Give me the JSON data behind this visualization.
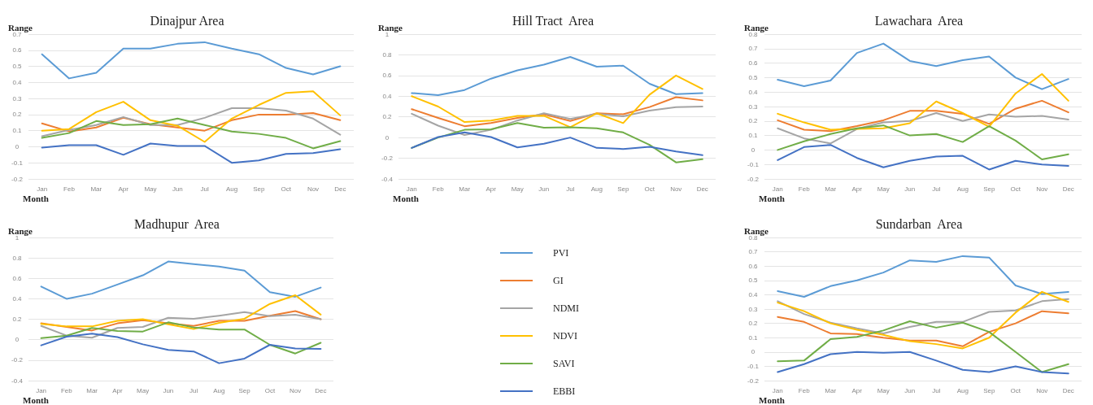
{
  "chart_data": [
    {
      "type": "line",
      "title": "Dinajpur Area",
      "xlabel": "Month",
      "ylabel": "Range",
      "categories": [
        "Jan",
        "Feb",
        "Mar",
        "Apr",
        "May",
        "Jun",
        "Jul",
        "Aug",
        "Sep",
        "Oct",
        "Nov",
        "Dec"
      ],
      "ylim": [
        -0.2,
        0.7
      ],
      "yticks": [
        -0.2,
        -0.1,
        0,
        0.1,
        0.2,
        0.3,
        0.4,
        0.5,
        0.6,
        0.7
      ],
      "grid": "y",
      "legend": false,
      "marker": "none",
      "line_style": "solid",
      "series": [
        {
          "color": "#5b9bd5",
          "values": [
            0.575,
            0.425,
            0.46,
            0.61,
            0.61,
            0.64,
            0.65,
            0.61,
            0.575,
            0.49,
            0.45,
            0.5
          ]
        },
        {
          "color": "#ed7d31",
          "values": [
            0.145,
            0.095,
            0.12,
            0.18,
            0.14,
            0.12,
            0.1,
            0.165,
            0.2,
            0.2,
            0.21,
            0.165
          ]
        },
        {
          "color": "#a5a5a5",
          "values": [
            0.065,
            0.105,
            0.135,
            0.185,
            0.135,
            0.135,
            0.18,
            0.24,
            0.24,
            0.225,
            0.175,
            0.075
          ]
        },
        {
          "color": "#ffc000",
          "values": [
            0.1,
            0.11,
            0.215,
            0.28,
            0.165,
            0.13,
            0.03,
            0.175,
            0.26,
            0.335,
            0.345,
            0.195
          ]
        },
        {
          "color": "#70ad47",
          "values": [
            0.055,
            0.085,
            0.16,
            0.135,
            0.14,
            0.175,
            0.135,
            0.095,
            0.08,
            0.055,
            -0.01,
            0.035
          ]
        },
        {
          "color": "#4472c4",
          "values": [
            -0.005,
            0.01,
            0.01,
            -0.05,
            0.02,
            0.005,
            0.005,
            -0.1,
            -0.085,
            -0.045,
            -0.04,
            -0.015
          ]
        }
      ]
    },
    {
      "type": "line",
      "title": "Hill Tract  Area",
      "xlabel": "Month",
      "ylabel": "Range",
      "categories": [
        "Jan",
        "Feb",
        "Mar",
        "Apr",
        "May",
        "Jun",
        "Jul",
        "Aug",
        "Sep",
        "Oct",
        "Nov",
        "Dec"
      ],
      "ylim": [
        -0.4,
        1
      ],
      "yticks": [
        -0.4,
        -0.2,
        0,
        0.2,
        0.4,
        0.6,
        0.8,
        1
      ],
      "grid": "y",
      "legend": false,
      "marker": "none",
      "line_style": "solid",
      "series": [
        {
          "color": "#5b9bd5",
          "values": [
            0.43,
            0.41,
            0.46,
            0.57,
            0.65,
            0.705,
            0.78,
            0.685,
            0.695,
            0.52,
            0.42,
            0.43
          ]
        },
        {
          "color": "#ed7d31",
          "values": [
            0.275,
            0.19,
            0.11,
            0.14,
            0.19,
            0.225,
            0.16,
            0.235,
            0.225,
            0.295,
            0.39,
            0.36
          ]
        },
        {
          "color": "#a5a5a5",
          "values": [
            0.23,
            0.115,
            0.025,
            0.075,
            0.165,
            0.235,
            0.18,
            0.23,
            0.205,
            0.26,
            0.295,
            0.3
          ]
        },
        {
          "color": "#ffc000",
          "values": [
            0.4,
            0.3,
            0.15,
            0.165,
            0.21,
            0.21,
            0.1,
            0.235,
            0.14,
            0.415,
            0.6,
            0.47
          ]
        },
        {
          "color": "#70ad47",
          "values": [
            -0.1,
            0,
            0.075,
            0.08,
            0.14,
            0.095,
            0.1,
            0.09,
            0.05,
            -0.07,
            -0.24,
            -0.21
          ]
        },
        {
          "color": "#4472c4",
          "values": [
            -0.1,
            0.005,
            0.05,
            0.005,
            -0.095,
            -0.06,
            0,
            -0.1,
            -0.11,
            -0.09,
            -0.135,
            -0.17
          ]
        }
      ]
    },
    {
      "type": "line",
      "title": "Lawachara  Area",
      "xlabel": "Month",
      "ylabel": "Range",
      "categories": [
        "Jan",
        "Feb",
        "Mar",
        "Apr",
        "May",
        "Jun",
        "Jul",
        "Aug",
        "Sep",
        "Oct",
        "Nov",
        "Dec"
      ],
      "ylim": [
        -0.2,
        0.8
      ],
      "yticks": [
        -0.2,
        -0.1,
        0,
        0.1,
        0.2,
        0.3,
        0.4,
        0.5,
        0.6,
        0.7,
        0.8
      ],
      "grid": "y",
      "legend": false,
      "marker": "none",
      "line_style": "solid",
      "series": [
        {
          "color": "#5b9bd5",
          "values": [
            0.485,
            0.44,
            0.48,
            0.67,
            0.735,
            0.615,
            0.58,
            0.62,
            0.645,
            0.5,
            0.42,
            0.49
          ]
        },
        {
          "color": "#ed7d31",
          "values": [
            0.205,
            0.14,
            0.13,
            0.165,
            0.205,
            0.27,
            0.27,
            0.25,
            0.18,
            0.285,
            0.34,
            0.26
          ]
        },
        {
          "color": "#a5a5a5",
          "values": [
            0.15,
            0.08,
            0.045,
            0.145,
            0.19,
            0.2,
            0.255,
            0.2,
            0.245,
            0.23,
            0.235,
            0.21
          ]
        },
        {
          "color": "#ffc000",
          "values": [
            0.25,
            0.19,
            0.14,
            0.145,
            0.15,
            0.185,
            0.335,
            0.255,
            0.16,
            0.39,
            0.525,
            0.34
          ]
        },
        {
          "color": "#70ad47",
          "values": [
            0,
            0.06,
            0.11,
            0.15,
            0.17,
            0.1,
            0.11,
            0.055,
            0.165,
            0.065,
            -0.065,
            -0.03
          ]
        },
        {
          "color": "#4472c4",
          "values": [
            -0.07,
            0.02,
            0.035,
            -0.055,
            -0.12,
            -0.075,
            -0.045,
            -0.04,
            -0.135,
            -0.075,
            -0.1,
            -0.11
          ]
        }
      ]
    },
    {
      "type": "line",
      "title": "Madhupur  Area",
      "xlabel": "Month",
      "ylabel": "Range",
      "categories": [
        "Jan",
        "Feb",
        "Mar",
        "Apr",
        "May",
        "Jun",
        "Jul",
        "Aug",
        "Sep",
        "Oct",
        "Nov",
        "Dec"
      ],
      "ylim": [
        -0.4,
        1
      ],
      "yticks": [
        -0.4,
        -0.2,
        0,
        0.2,
        0.4,
        0.6,
        0.8,
        1
      ],
      "grid": "y",
      "legend": "right",
      "marker": "none",
      "line_style": "solid",
      "series": [
        {
          "name": "PVI",
          "color": "#5b9bd5",
          "values": [
            0.52,
            0.4,
            0.45,
            0.54,
            0.63,
            0.765,
            0.74,
            0.715,
            0.675,
            0.465,
            0.42,
            0.51
          ]
        },
        {
          "name": "GI",
          "color": "#ed7d31",
          "values": [
            0.16,
            0.125,
            0.09,
            0.16,
            0.19,
            0.16,
            0.135,
            0.185,
            0.185,
            0.235,
            0.28,
            0.2
          ]
        },
        {
          "name": "NDMI",
          "color": "#a5a5a5",
          "values": [
            0.135,
            0.04,
            0.02,
            0.115,
            0.125,
            0.215,
            0.205,
            0.235,
            0.27,
            0.23,
            0.245,
            0.2
          ]
        },
        {
          "name": "NDVI",
          "color": "#ffc000",
          "values": [
            0.155,
            0.13,
            0.13,
            0.185,
            0.2,
            0.15,
            0.105,
            0.165,
            0.205,
            0.35,
            0.435,
            0.245
          ]
        },
        {
          "name": "SAVI",
          "color": "#70ad47",
          "values": [
            0.015,
            0.04,
            0.115,
            0.085,
            0.08,
            0.17,
            0.12,
            0.1,
            0.1,
            -0.05,
            -0.135,
            -0.03
          ]
        },
        {
          "name": "EBBI",
          "color": "#4472c4",
          "values": [
            -0.055,
            0.03,
            0.06,
            0.025,
            -0.045,
            -0.1,
            -0.115,
            -0.23,
            -0.185,
            -0.05,
            -0.085,
            -0.09
          ]
        }
      ]
    },
    {
      "type": "line",
      "title": "Sundarban  Area",
      "xlabel": "Month",
      "ylabel": "Range",
      "categories": [
        "Jan",
        "Feb",
        "Mar",
        "Apr",
        "May",
        "Jun",
        "Jul",
        "Aug",
        "Sep",
        "Oct",
        "Nov",
        "Dec"
      ],
      "ylim": [
        -0.2,
        0.8
      ],
      "yticks": [
        -0.2,
        -0.1,
        0,
        0.1,
        0.2,
        0.3,
        0.4,
        0.5,
        0.6,
        0.7,
        0.8
      ],
      "grid": "y",
      "legend": false,
      "marker": "none",
      "line_style": "solid",
      "series": [
        {
          "color": "#5b9bd5",
          "values": [
            0.425,
            0.385,
            0.46,
            0.5,
            0.555,
            0.64,
            0.63,
            0.67,
            0.66,
            0.465,
            0.405,
            0.42
          ]
        },
        {
          "color": "#ed7d31",
          "values": [
            0.245,
            0.21,
            0.13,
            0.125,
            0.1,
            0.08,
            0.08,
            0.04,
            0.14,
            0.2,
            0.285,
            0.27
          ]
        },
        {
          "color": "#a5a5a5",
          "values": [
            0.355,
            0.265,
            0.205,
            0.165,
            0.13,
            0.175,
            0.21,
            0.21,
            0.28,
            0.29,
            0.355,
            0.37
          ]
        },
        {
          "color": "#ffc000",
          "values": [
            0.345,
            0.285,
            0.2,
            0.155,
            0.12,
            0.075,
            0.055,
            0.025,
            0.1,
            0.275,
            0.42,
            0.35
          ]
        },
        {
          "color": "#70ad47",
          "values": [
            -0.065,
            -0.06,
            0.09,
            0.105,
            0.15,
            0.215,
            0.17,
            0.205,
            0.14,
            0,
            -0.14,
            -0.085
          ]
        },
        {
          "color": "#4472c4",
          "values": [
            -0.14,
            -0.085,
            -0.015,
            0,
            -0.005,
            0,
            -0.06,
            -0.125,
            -0.14,
            -0.1,
            -0.14,
            -0.15
          ]
        }
      ]
    }
  ]
}
